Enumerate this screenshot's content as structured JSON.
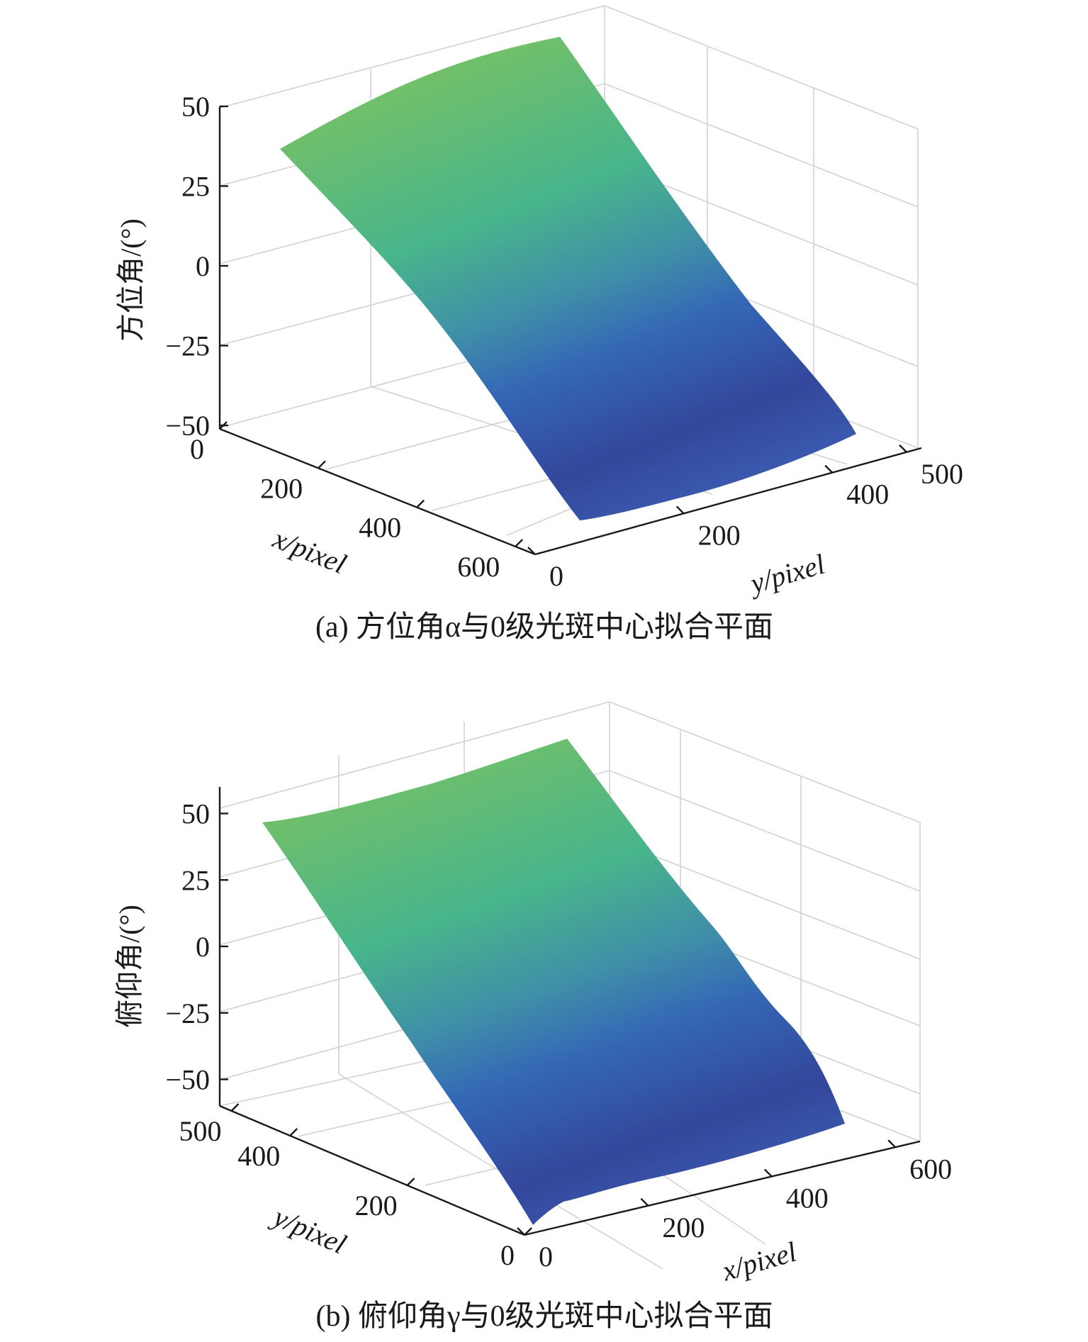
{
  "chart_data": [
    {
      "type": "surface3d",
      "caption": "(a) 方位角α与0级光斑中心拟合平面",
      "zlabel": "方位角/(°)",
      "xlabel": "x/pixel",
      "ylabel": "y/pixel",
      "zticks": [
        "50",
        "25",
        "0",
        "−25",
        "−50"
      ],
      "xticks": [
        "0",
        "200",
        "400",
        "600"
      ],
      "yticks": [
        "0",
        "200",
        "400",
        "500"
      ],
      "zlim": [
        -50,
        50
      ],
      "xlim": [
        0,
        640
      ],
      "ylim": [
        0,
        500
      ],
      "surface_corners": [
        {
          "x": 0,
          "y": 0,
          "z": 45
        },
        {
          "x": 0,
          "y": 480,
          "z": 50
        },
        {
          "x": 600,
          "y": 480,
          "z": -50
        },
        {
          "x": 600,
          "y": 0,
          "z": -50
        }
      ],
      "colormap": [
        "#2f3f8f",
        "#3466b6",
        "#3f9aa0",
        "#48b58b",
        "#6fbf6b"
      ],
      "grid": true
    },
    {
      "type": "surface3d",
      "caption": "(b) 俯仰角γ与0级光斑中心拟合平面",
      "zlabel": "俯仰角/(°)",
      "xlabel": "x/pixel",
      "ylabel": "y/pixel",
      "zticks": [
        "50",
        "25",
        "0",
        "−25",
        "−50"
      ],
      "xticks": [
        "0",
        "200",
        "400",
        "600"
      ],
      "yticks": [
        "0",
        "200",
        "400",
        "500"
      ],
      "zlim": [
        -60,
        60
      ],
      "xlim": [
        0,
        640
      ],
      "ylim": [
        0,
        500
      ],
      "surface_corners": [
        {
          "x": 0,
          "y": 480,
          "z": 50
        },
        {
          "x": 600,
          "y": 480,
          "z": 55
        },
        {
          "x": 600,
          "y": 0,
          "z": -55
        },
        {
          "x": 0,
          "y": 0,
          "z": -55
        }
      ],
      "colormap": [
        "#2f3f8f",
        "#3466b6",
        "#3f9aa0",
        "#48b58b",
        "#6fbf6b"
      ],
      "grid": true
    }
  ]
}
